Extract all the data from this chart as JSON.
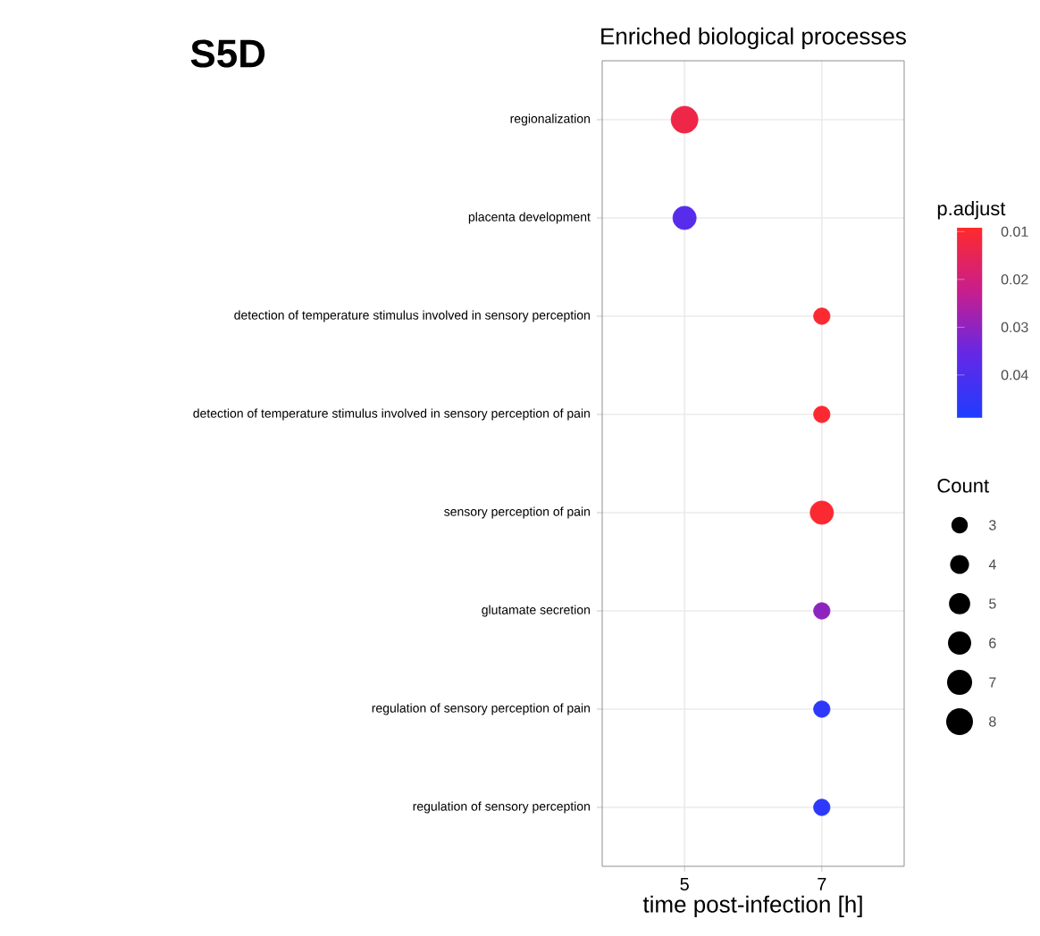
{
  "chart_data": {
    "type": "bubble",
    "orientation": "horizontal",
    "title": "Enriched biological processes",
    "xlabel": "time post-infection [h]",
    "categories": [
      "regionalization",
      "placenta development",
      "detection of temperature stimulus involved in sensory perception",
      "detection of temperature stimulus involved in sensory perception of pain",
      "sensory perception of pain",
      "glutamate secretion",
      "regulation of sensory perception of pain",
      "regulation of sensory perception"
    ],
    "values": [
      5,
      5,
      7,
      7,
      7,
      7,
      7,
      7
    ],
    "sizes": [
      8,
      6,
      3,
      3,
      6,
      3,
      3,
      3
    ],
    "cvalues": [
      0.013,
      0.038,
      0.01,
      0.01,
      0.01,
      0.03,
      0.046,
      0.046
    ],
    "size_legend": [
      3,
      4,
      5,
      6,
      7,
      8
    ],
    "legend_title": "Count",
    "clabel": "p.adjust",
    "clim": [
      0.009,
      0.049
    ],
    "cticks": [
      0.01,
      0.02,
      0.03,
      0.04
    ],
    "xlim": [
      3.8,
      8.2
    ],
    "xticks": [
      5,
      7
    ],
    "grid": true,
    "annotations": [
      "S5D"
    ]
  }
}
